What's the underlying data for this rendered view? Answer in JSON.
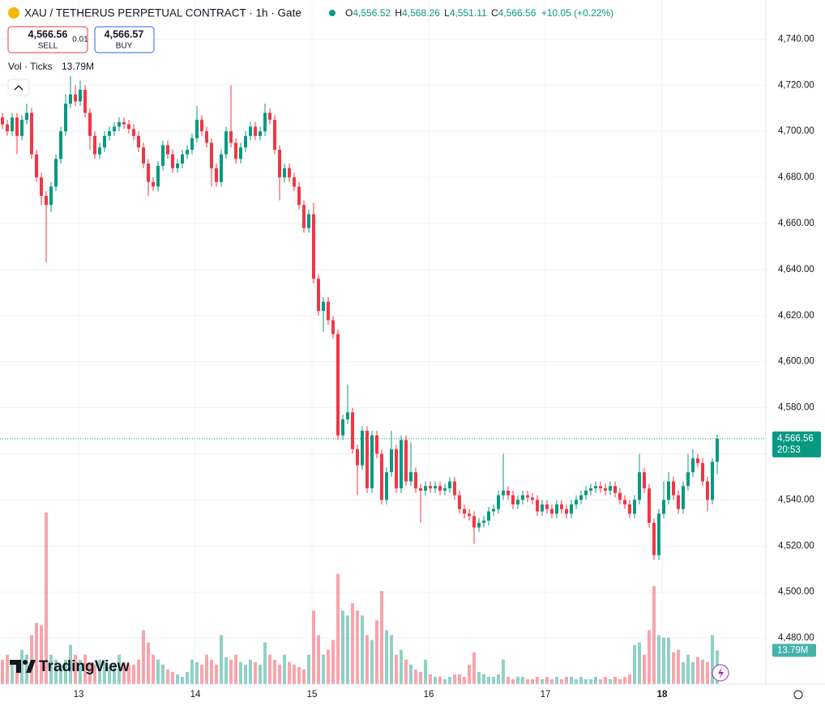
{
  "chart_data": {
    "type": "candlestick",
    "title": "XAU / TETHERUS PERPETUAL CONTRACT · 1h · Gate",
    "ohlc_legend": {
      "o_label": "O",
      "o": "4,556.52",
      "h_label": "H",
      "h": "4,568.26",
      "l_label": "L",
      "l": "4,551.11",
      "c_label": "C",
      "c": "4,566.56",
      "change": "+10.05 (+0.22%)"
    },
    "trade": {
      "sell_price": "4,566.56",
      "sell_label": "SELL",
      "spread": "0.01",
      "buy_price": "4,566.57",
      "buy_label": "BUY"
    },
    "volume_title": "Vol · Ticks",
    "volume_label": "13.79M",
    "last_price_label": "4,566.56",
    "countdown": "20:53",
    "brand": "TradingView",
    "up_color": "#089981",
    "down_color": "#f23645",
    "grid": true,
    "ylim": [
      4460,
      4757
    ],
    "yticks": [
      {
        "value": 4480,
        "label": "4,480.00"
      },
      {
        "value": 4500,
        "label": "4,500.00"
      },
      {
        "value": 4520,
        "label": "4,520.00"
      },
      {
        "value": 4540,
        "label": "4,540.00"
      },
      {
        "value": 4560,
        "label": "4,560.00"
      },
      {
        "value": 4580,
        "label": "4,580.00"
      },
      {
        "value": 4600,
        "label": "4,600.00"
      },
      {
        "value": 4620,
        "label": "4,620.00"
      },
      {
        "value": 4640,
        "label": "4,640.00"
      },
      {
        "value": 4660,
        "label": "4,660.00"
      },
      {
        "value": 4680,
        "label": "4,680.00"
      },
      {
        "value": 4700,
        "label": "4,700.00"
      },
      {
        "value": 4720,
        "label": "4,720.00"
      },
      {
        "value": 4740,
        "label": "4,740.00"
      }
    ],
    "xticks": [
      {
        "value": 16,
        "label": "13"
      },
      {
        "value": 40,
        "label": "14"
      },
      {
        "value": 64,
        "label": "15"
      },
      {
        "value": 88,
        "label": "16"
      },
      {
        "value": 112,
        "label": "17"
      },
      {
        "value": 136,
        "label": "18"
      }
    ],
    "open": [
      4706,
      4703,
      4700,
      4706,
      4698,
      4705,
      4708,
      4690,
      4680,
      4672,
      4668,
      4676,
      4688,
      4700,
      4712,
      4716,
      4713,
      4718,
      4708,
      4698,
      4690,
      4693,
      4698,
      4700,
      4702,
      4704,
      4703,
      4701,
      4698,
      4693,
      4686,
      4678,
      4676,
      4685,
      4694,
      4690,
      4684,
      4686,
      4690,
      4692,
      4697,
      4705,
      4700,
      4695,
      4684,
      4678,
      4690,
      4700,
      4695,
      4688,
      4693,
      4698,
      4702,
      4698,
      4700,
      4708,
      4705,
      4692,
      4680,
      4684,
      4680,
      4676,
      4668,
      4658,
      4664,
      4636,
      4622,
      4626,
      4618,
      4612,
      4568,
      4575,
      4578,
      4562,
      4555,
      4570,
      4545,
      4568,
      4560,
      4540,
      4552,
      4562,
      4545,
      4566,
      4548,
      4552,
      4545,
      4544,
      4546,
      4545,
      4546,
      4544,
      4545,
      4548,
      4542,
      4536,
      4534,
      4533,
      4528,
      4530,
      4531,
      4535,
      4536,
      4542,
      4544,
      4542,
      4538,
      4540,
      4542,
      4541,
      4540,
      4535,
      4538,
      4536,
      4534,
      4538,
      4536,
      4534,
      4538,
      4540,
      4542,
      4544,
      4545,
      4546,
      4545,
      4544,
      4546,
      4543,
      4540,
      4538,
      4534,
      4540,
      4552,
      4545,
      4530,
      4516,
      4534,
      4540,
      4548,
      4542,
      4536,
      4546,
      4552,
      4558,
      4556,
      4548,
      4540,
      4556.52
    ],
    "high": [
      4708,
      4705,
      4708,
      4708,
      4707,
      4712,
      4710,
      4692,
      4682,
      4674,
      4678,
      4690,
      4702,
      4716,
      4724,
      4720,
      4722,
      4720,
      4710,
      4700,
      4695,
      4700,
      4702,
      4704,
      4706,
      4706,
      4705,
      4703,
      4700,
      4695,
      4688,
      4680,
      4687,
      4696,
      4696,
      4692,
      4688,
      4692,
      4694,
      4699,
      4711,
      4707,
      4702,
      4697,
      4686,
      4692,
      4702,
      4720,
      4697,
      4695,
      4700,
      4704,
      4704,
      4702,
      4712,
      4710,
      4707,
      4694,
      4686,
      4686,
      4682,
      4678,
      4670,
      4666,
      4669,
      4638,
      4628,
      4628,
      4620,
      4614,
      4577,
      4590,
      4580,
      4564,
      4572,
      4572,
      4570,
      4570,
      4562,
      4554,
      4570,
      4564,
      4568,
      4568,
      4565,
      4554,
      4547,
      4548,
      4548,
      4548,
      4548,
      4547,
      4550,
      4550,
      4544,
      4538,
      4536,
      4535,
      4532,
      4533,
      4537,
      4538,
      4544,
      4560,
      4546,
      4544,
      4542,
      4544,
      4544,
      4543,
      4542,
      4540,
      4540,
      4538,
      4540,
      4540,
      4538,
      4540,
      4542,
      4544,
      4546,
      4547,
      4548,
      4548,
      4547,
      4548,
      4548,
      4545,
      4542,
      4540,
      4542,
      4560,
      4554,
      4547,
      4532,
      4536,
      4548,
      4552,
      4550,
      4544,
      4548,
      4560,
      4562,
      4560,
      4558,
      4550,
      4558,
      4568.26
    ],
    "low": [
      4701,
      4698,
      4698,
      4690,
      4696,
      4703,
      4688,
      4678,
      4668,
      4643,
      4665,
      4674,
      4686,
      4698,
      4710,
      4711,
      4711,
      4706,
      4692,
      4688,
      4688,
      4691,
      4696,
      4698,
      4700,
      4701,
      4699,
      4696,
      4691,
      4684,
      4672,
      4674,
      4674,
      4683,
      4688,
      4682,
      4682,
      4684,
      4688,
      4690,
      4695,
      4698,
      4693,
      4676,
      4676,
      4676,
      4688,
      4693,
      4686,
      4686,
      4691,
      4696,
      4696,
      4696,
      4698,
      4703,
      4690,
      4670,
      4678,
      4678,
      4674,
      4666,
      4656,
      4656,
      4634,
      4620,
      4613,
      4616,
      4610,
      4566,
      4566,
      4573,
      4560,
      4542,
      4553,
      4543,
      4543,
      4558,
      4538,
      4538,
      4550,
      4543,
      4543,
      4546,
      4546,
      4543,
      4530,
      4542,
      4543,
      4543,
      4542,
      4542,
      4543,
      4540,
      4534,
      4532,
      4531,
      4521,
      4526,
      4528,
      4529,
      4533,
      4534,
      4540,
      4540,
      4536,
      4536,
      4538,
      4539,
      4538,
      4533,
      4533,
      4534,
      4532,
      4532,
      4534,
      4532,
      4532,
      4536,
      4538,
      4540,
      4542,
      4543,
      4543,
      4542,
      4542,
      4541,
      4538,
      4536,
      4532,
      4532,
      4538,
      4543,
      4528,
      4514,
      4514,
      4532,
      4538,
      4540,
      4534,
      4534,
      4544,
      4550,
      4554,
      4546,
      4535,
      4538,
      4551.11
    ],
    "close": [
      4703,
      4700,
      4706,
      4698,
      4705,
      4708,
      4690,
      4680,
      4672,
      4668,
      4676,
      4688,
      4700,
      4712,
      4716,
      4713,
      4718,
      4708,
      4698,
      4690,
      4693,
      4698,
      4700,
      4702,
      4704,
      4703,
      4701,
      4698,
      4693,
      4686,
      4678,
      4676,
      4685,
      4694,
      4690,
      4684,
      4686,
      4690,
      4692,
      4697,
      4705,
      4700,
      4695,
      4684,
      4678,
      4690,
      4700,
      4695,
      4688,
      4693,
      4698,
      4702,
      4698,
      4700,
      4708,
      4705,
      4692,
      4680,
      4684,
      4680,
      4676,
      4668,
      4658,
      4664,
      4636,
      4622,
      4626,
      4618,
      4612,
      4568,
      4575,
      4578,
      4562,
      4555,
      4570,
      4545,
      4568,
      4560,
      4540,
      4552,
      4562,
      4545,
      4566,
      4548,
      4552,
      4545,
      4544,
      4546,
      4545,
      4546,
      4544,
      4545,
      4548,
      4542,
      4536,
      4534,
      4533,
      4528,
      4530,
      4531,
      4535,
      4536,
      4542,
      4544,
      4542,
      4538,
      4540,
      4542,
      4541,
      4540,
      4535,
      4538,
      4536,
      4534,
      4538,
      4536,
      4534,
      4538,
      4540,
      4542,
      4544,
      4545,
      4546,
      4545,
      4544,
      4546,
      4543,
      4540,
      4538,
      4534,
      4540,
      4552,
      4545,
      4530,
      4516,
      4534,
      4540,
      4548,
      4542,
      4536,
      4546,
      4552,
      4558,
      4556,
      4548,
      4540,
      4556.52,
      4566.56
    ],
    "volume": [
      10,
      12,
      8,
      9,
      14,
      12,
      20,
      25,
      24,
      70,
      12,
      10,
      8,
      10,
      16,
      12,
      10,
      12,
      9,
      8,
      10,
      9,
      7,
      8,
      12,
      9,
      8,
      8,
      10,
      22,
      17,
      12,
      10,
      8,
      6,
      5,
      4,
      3,
      5,
      10,
      9,
      8,
      12,
      10,
      8,
      20,
      11,
      10,
      12,
      9,
      8,
      10,
      9,
      8,
      17,
      12,
      10,
      8,
      12,
      9,
      8,
      7,
      6,
      12,
      30,
      20,
      12,
      14,
      18,
      45,
      30,
      28,
      33,
      30,
      28,
      20,
      18,
      26,
      38,
      22,
      20,
      12,
      14,
      10,
      8,
      6,
      5,
      10,
      4,
      3,
      3,
      2,
      3,
      4,
      4,
      3,
      8,
      13,
      5,
      4,
      3,
      3,
      4,
      10,
      3,
      2,
      3,
      3,
      2,
      2,
      3,
      2,
      3,
      2,
      3,
      2,
      3,
      3,
      2,
      3,
      2,
      2,
      3,
      2,
      3,
      2,
      3,
      2,
      3,
      4,
      16,
      17,
      12,
      22,
      40,
      20,
      19,
      19,
      13,
      14,
      9,
      12,
      9,
      11,
      10,
      9,
      20,
      13.79
    ]
  }
}
